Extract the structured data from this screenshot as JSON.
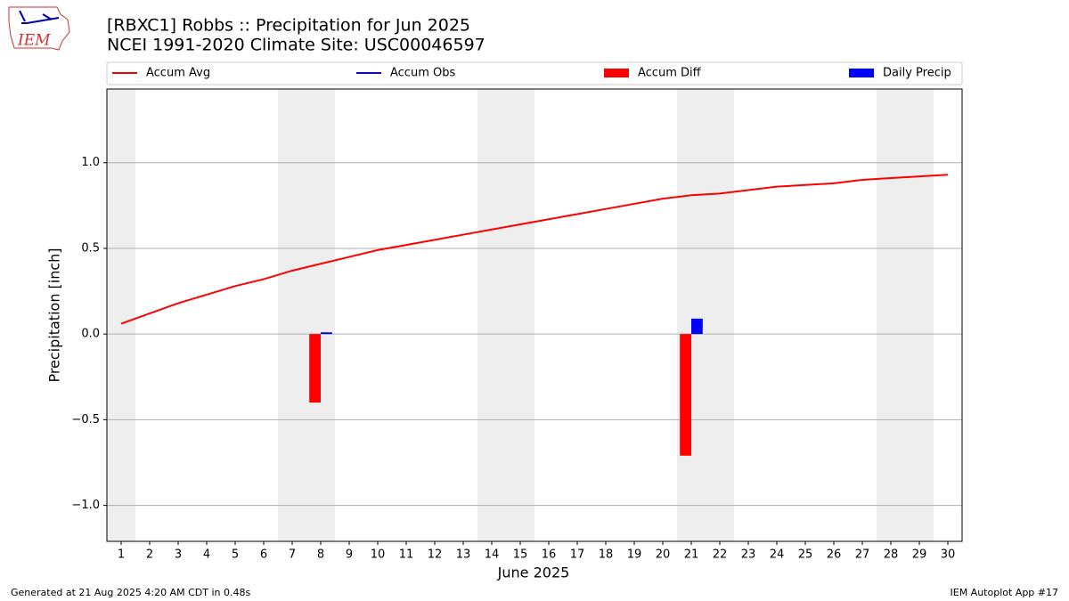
{
  "logo_text": "IEM",
  "chart_data": {
    "type": "line",
    "title": "[RBXC1] Robbs :: Precipitation for Jun 2025",
    "subtitle": "NCEI 1991-2020 Climate Site: USC00046597",
    "xlabel": "June 2025",
    "ylabel": "Precipitation [inch]",
    "x": [
      1,
      2,
      3,
      4,
      5,
      6,
      7,
      8,
      9,
      10,
      11,
      12,
      13,
      14,
      15,
      16,
      17,
      18,
      19,
      20,
      21,
      22,
      23,
      24,
      25,
      26,
      27,
      28,
      29,
      30
    ],
    "series": [
      {
        "name": "Accum Avg",
        "kind": "line",
        "color": "#ff0000",
        "values": [
          0.06,
          0.12,
          0.18,
          0.23,
          0.28,
          0.32,
          0.37,
          0.41,
          0.45,
          0.49,
          0.52,
          0.55,
          0.58,
          0.61,
          0.64,
          0.67,
          0.7,
          0.73,
          0.76,
          0.79,
          0.81,
          0.82,
          0.84,
          0.86,
          0.87,
          0.88,
          0.9,
          0.91,
          0.92,
          0.93
        ]
      },
      {
        "name": "Accum Obs",
        "kind": "line",
        "color": "#0000ff",
        "values": [
          null,
          null,
          null,
          null,
          null,
          null,
          null,
          null,
          null,
          null,
          null,
          null,
          null,
          null,
          null,
          null,
          null,
          null,
          null,
          null,
          null,
          null,
          null,
          null,
          null,
          null,
          null,
          null,
          null,
          null
        ]
      },
      {
        "name": "Accum Diff",
        "kind": "bar",
        "color": "#ff0000",
        "values": [
          null,
          null,
          null,
          null,
          null,
          null,
          null,
          -0.4,
          null,
          null,
          null,
          null,
          null,
          null,
          null,
          null,
          null,
          null,
          null,
          null,
          -0.71,
          null,
          null,
          null,
          null,
          null,
          null,
          null,
          null,
          null
        ]
      },
      {
        "name": "Daily Precip",
        "kind": "bar",
        "color": "#0000ff",
        "values": [
          0,
          0,
          0,
          0,
          0,
          0,
          0,
          0.01,
          0,
          0,
          0,
          0,
          0,
          0,
          0,
          0,
          0,
          0,
          0,
          0,
          0.09,
          0,
          0,
          0,
          0,
          0,
          0,
          0,
          0,
          0
        ]
      }
    ],
    "shaded_days": [
      1,
      7,
      8,
      14,
      15,
      21,
      22,
      28,
      29
    ],
    "xlim": [
      0.5,
      30.5
    ],
    "xticks": [
      1,
      2,
      3,
      4,
      5,
      6,
      7,
      8,
      9,
      10,
      11,
      12,
      13,
      14,
      15,
      16,
      17,
      18,
      19,
      20,
      21,
      22,
      23,
      24,
      25,
      26,
      27,
      28,
      29,
      30
    ],
    "ylim": [
      -1.21,
      1.43
    ],
    "yticks": [
      {
        "value": -1.0,
        "label": "−1.0"
      },
      {
        "value": -0.5,
        "label": "−0.5"
      },
      {
        "value": 0.0,
        "label": "0.0"
      },
      {
        "value": 0.5,
        "label": "0.5"
      },
      {
        "value": 1.0,
        "label": "1.0"
      }
    ],
    "grid": true,
    "legend": "top",
    "footer_left": "Generated at 21 Aug 2025 4:20 AM CDT in 0.48s",
    "footer_right": "IEM Autoplot App #17"
  }
}
